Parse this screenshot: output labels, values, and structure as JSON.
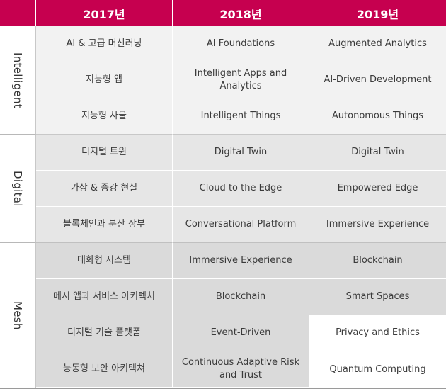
{
  "headers": [
    "2017년",
    "2018년",
    "2019년"
  ],
  "groups": {
    "intelligent": "Intelligent",
    "digital": "Digital",
    "mesh": "Mesh"
  },
  "rows": [
    [
      "AI & 고급 머신러닝",
      "AI Foundations",
      "Augmented Analytics"
    ],
    [
      "지능형 앱",
      "Intelligent Apps and Analytics",
      "AI-Driven Development"
    ],
    [
      "지능형 사물",
      "Intelligent Things",
      "Autonomous Things"
    ],
    [
      "디지털 트윈",
      "Digital Twin",
      "Digital Twin"
    ],
    [
      "가상 & 증강 현실",
      "Cloud to the Edge",
      "Empowered Edge"
    ],
    [
      "블록체인과 분산 장부",
      "Conversational Platform",
      "Immersive Experience"
    ],
    [
      "대화형 시스템",
      "Immersive Experience",
      "Blockchain"
    ],
    [
      "메시 앱과 서비스 아키텍처",
      "Blockchain",
      "Smart Spaces"
    ],
    [
      "디지털 기술 플랫폼",
      "Event-Driven",
      "Privacy and Ethics"
    ],
    [
      "능동형 보안 아키텍쳐",
      "Continuous Adaptive Risk and Trust",
      "Quantum Computing"
    ]
  ],
  "colors": {
    "header": "#c6004f",
    "intelligent_bg": "#f2f2f2",
    "digital_bg": "#e6e6e6",
    "mesh_bg": "#dadada"
  }
}
